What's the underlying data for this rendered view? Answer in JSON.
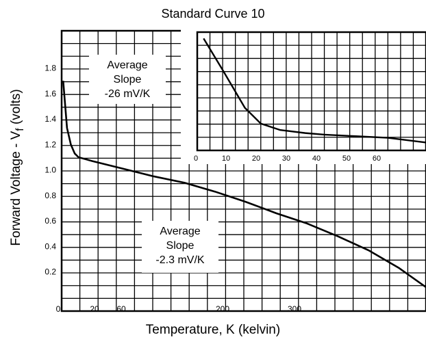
{
  "chart_data": [
    {
      "type": "line",
      "title": "Standard Curve 10",
      "xlabel": "Temperature,  K  (kelvin)",
      "ylabel_main": "Forward Voltage - V",
      "ylabel_sub": "f",
      "ylabel_suffix": " (volts)",
      "xlim": [
        0,
        475
      ],
      "ylim": [
        0,
        1.8
      ],
      "grid": true,
      "x_ticks": [
        "0",
        "20",
        "60",
        "200",
        "300"
      ],
      "y_ticks": [
        "1.8",
        "1.6",
        "1.4",
        "1.2",
        "1.0",
        "0.8",
        "0.6",
        "0.4",
        "0.2"
      ],
      "series": [
        {
          "x": [
            2,
            7,
            12,
            17,
            22,
            40,
            80,
            120,
            160,
            200,
            240,
            280,
            320,
            360,
            400,
            440,
            475
          ],
          "y": [
            1.7,
            1.33,
            1.2,
            1.13,
            1.1,
            1.07,
            1.01,
            0.95,
            0.9,
            0.83,
            0.75,
            0.66,
            0.58,
            0.48,
            0.37,
            0.23,
            0.08
          ]
        }
      ],
      "annotations": [
        {
          "lines": [
            "Average",
            "Slope",
            "-26 mV/K"
          ]
        },
        {
          "lines": [
            "Average",
            "Slope",
            "-2.3 mV/K"
          ]
        }
      ]
    },
    {
      "type": "line",
      "inset": true,
      "xlim": [
        0,
        72
      ],
      "x_ticks": [
        "0",
        "10",
        "20",
        "30",
        "40",
        "50",
        "60"
      ],
      "grid": true,
      "series": [
        {
          "x": [
            2,
            8,
            15,
            20,
            26,
            34,
            40,
            50,
            60,
            72
          ],
          "y": [
            1.71,
            1.51,
            1.27,
            1.17,
            1.13,
            1.11,
            1.1,
            1.09,
            1.08,
            1.05
          ]
        }
      ]
    }
  ]
}
